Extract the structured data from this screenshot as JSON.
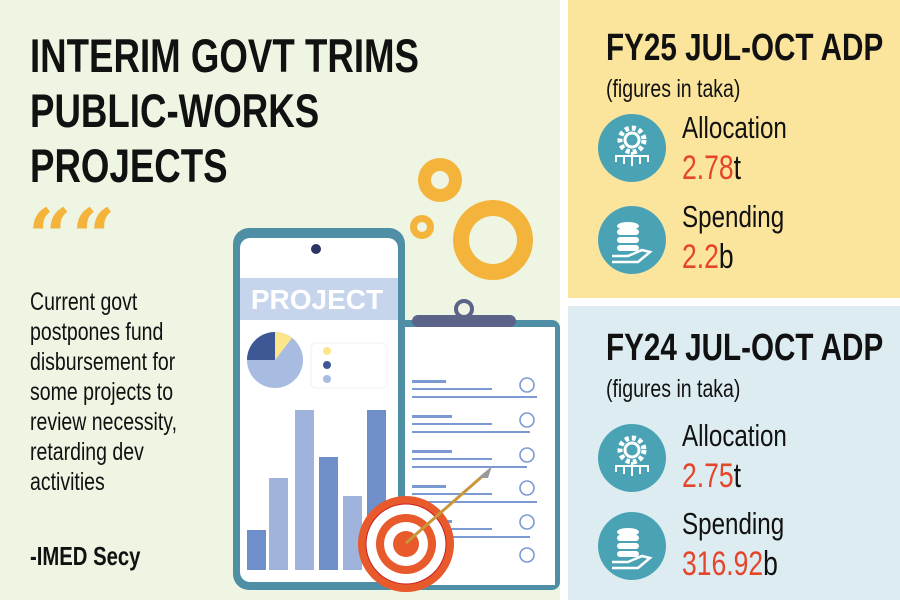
{
  "headline": [
    "INTERIM GOVT TRIMS",
    "PUBLIC-WORKS",
    "PROJECTS"
  ],
  "quote_mark": "““",
  "quote_lines": [
    "Current govt",
    "postpones fund",
    "disbursement for",
    "some projects to",
    "review necessity,",
    "retarding dev",
    "activities"
  ],
  "attribution": "-IMED Secy",
  "illustration": {
    "screen_label": "PROJECT"
  },
  "panels": [
    {
      "title": "FY25 JUL-OCT ADP",
      "subtitle": "(figures in taka)",
      "allocation": {
        "label": "Allocation",
        "value": "2.78",
        "unit": "t",
        "icon": "gear-network-icon"
      },
      "spending": {
        "label": "Spending",
        "value": "2.2",
        "unit": "b",
        "icon": "coins-hand-icon"
      }
    },
    {
      "title": "FY24 JUL-OCT ADP",
      "subtitle": "(figures in taka)",
      "allocation": {
        "label": "Allocation",
        "value": "2.75",
        "unit": "t",
        "icon": "gear-network-icon"
      },
      "spending": {
        "label": "Spending",
        "value": "316.92",
        "unit": "b",
        "icon": "coins-hand-icon"
      }
    }
  ],
  "colors": {
    "left_bg": "#eef5e2",
    "fy25_bg": "#fbe59c",
    "fy24_bg": "#dcecf1",
    "value": "#e5452a",
    "icon": "#4aa3b5",
    "gear": "#f4b43c"
  }
}
